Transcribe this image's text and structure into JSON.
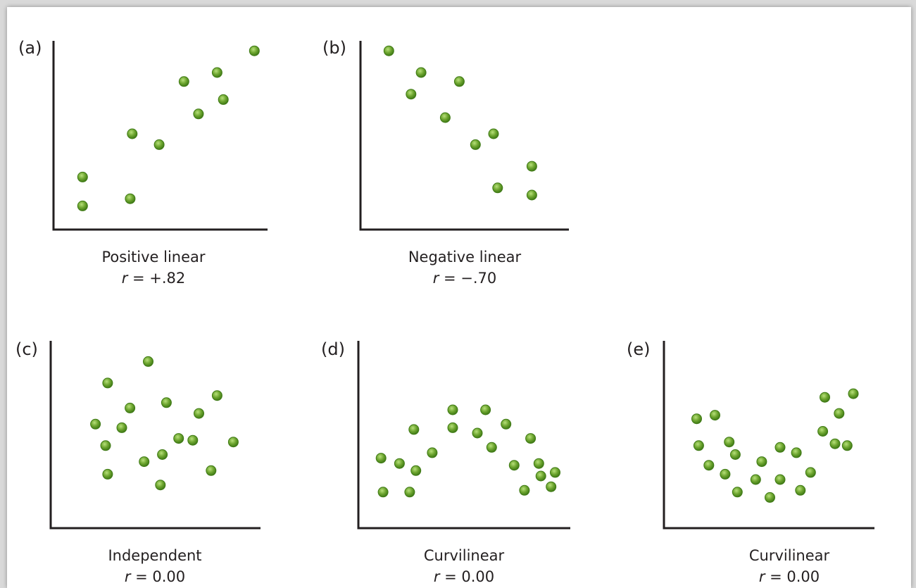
{
  "colors": {
    "dot_fill": "#6da52f",
    "dot_edge": "#3f7a16",
    "axis": "#231f20"
  },
  "chart_data": [
    {
      "type": "scatter",
      "panel_label": "(a)",
      "title": "Positive linear",
      "stat": "r = +.82",
      "points": [
        [
          12,
          10
        ],
        [
          12,
          26
        ],
        [
          35,
          14
        ],
        [
          36,
          50
        ],
        [
          49,
          44
        ],
        [
          61,
          79
        ],
        [
          68,
          61
        ],
        [
          77,
          84
        ],
        [
          80,
          69
        ],
        [
          95,
          96
        ]
      ]
    },
    {
      "type": "scatter",
      "panel_label": "(b)",
      "title": "Negative linear",
      "stat": "r = −.70",
      "points": [
        [
          12,
          96
        ],
        [
          23,
          72
        ],
        [
          28,
          84
        ],
        [
          40,
          59
        ],
        [
          47,
          79
        ],
        [
          55,
          44
        ],
        [
          64,
          50
        ],
        [
          66,
          20
        ],
        [
          83,
          32
        ],
        [
          83,
          16
        ]
      ]
    },
    {
      "type": "scatter",
      "panel_label": "(c)",
      "title": "Independent",
      "stat": "r = 0.00",
      "points": [
        [
          26,
          78
        ],
        [
          46,
          90
        ],
        [
          37,
          64
        ],
        [
          55,
          67
        ],
        [
          71,
          61
        ],
        [
          80,
          71
        ],
        [
          20,
          55
        ],
        [
          33,
          53
        ],
        [
          25,
          43
        ],
        [
          53,
          38
        ],
        [
          52,
          21
        ],
        [
          44,
          34
        ],
        [
          68,
          46
        ],
        [
          61,
          47
        ],
        [
          77,
          29
        ],
        [
          88,
          45
        ],
        [
          26,
          27
        ]
      ]
    },
    {
      "type": "scatter",
      "panel_label": "(d)",
      "title": "Curvilinear",
      "stat": "r = 0.00",
      "points": [
        [
          10,
          17
        ],
        [
          23,
          17
        ],
        [
          9,
          36
        ],
        [
          18,
          33
        ],
        [
          26,
          29
        ],
        [
          25,
          52
        ],
        [
          34,
          39
        ],
        [
          44,
          53
        ],
        [
          44,
          63
        ],
        [
          56,
          50
        ],
        [
          60,
          63
        ],
        [
          63,
          42
        ],
        [
          70,
          55
        ],
        [
          74,
          32
        ],
        [
          82,
          47
        ],
        [
          79,
          18
        ],
        [
          87,
          26
        ],
        [
          86,
          33
        ],
        [
          92,
          20
        ],
        [
          94,
          28
        ]
      ]
    },
    {
      "type": "scatter",
      "panel_label": "(e)",
      "title": "Curvilinear",
      "stat": "r = 0.00",
      "points": [
        [
          14,
          58
        ],
        [
          23,
          60
        ],
        [
          15,
          43
        ],
        [
          20,
          32
        ],
        [
          28,
          27
        ],
        [
          30,
          45
        ],
        [
          33,
          38
        ],
        [
          34,
          17
        ],
        [
          43,
          24
        ],
        [
          46,
          34
        ],
        [
          50,
          14
        ],
        [
          55,
          24
        ],
        [
          55,
          42
        ],
        [
          63,
          39
        ],
        [
          65,
          18
        ],
        [
          70,
          28
        ],
        [
          76,
          51
        ],
        [
          77,
          70
        ],
        [
          82,
          44
        ],
        [
          84,
          61
        ],
        [
          88,
          43
        ],
        [
          91,
          72
        ]
      ]
    }
  ]
}
